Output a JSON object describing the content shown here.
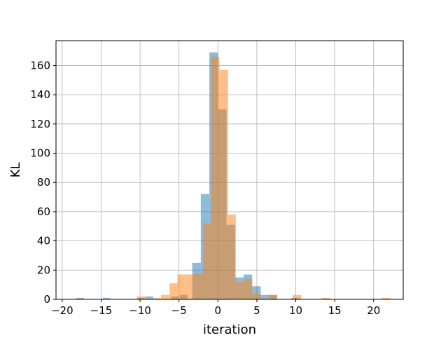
{
  "chart_data": {
    "type": "histogram",
    "title": "",
    "xlabel": "iteration",
    "ylabel": "KL",
    "xlim": [
      -20.8,
      23.8
    ],
    "ylim": [
      0,
      177
    ],
    "x_ticks": [
      -20,
      -15,
      -10,
      -5,
      0,
      5,
      10,
      15,
      20
    ],
    "y_ticks": [
      0,
      20,
      40,
      60,
      80,
      100,
      120,
      140,
      160
    ],
    "x_tick_labels": [
      "−20",
      "−15",
      "−10",
      "−5",
      "0",
      "5",
      "10",
      "15",
      "20"
    ],
    "y_tick_labels": [
      "0",
      "20",
      "40",
      "60",
      "80",
      "100",
      "120",
      "140",
      "160"
    ],
    "grid": true,
    "legend": "none",
    "bar_alpha": 0.5,
    "series": [
      {
        "color": "#1f77b4",
        "bins": [
          {
            "x0": -18.2,
            "x1": -17.2,
            "count": 1
          },
          {
            "x0": -14.8,
            "x1": -13.8,
            "count": 1
          },
          {
            "x0": -10.4,
            "x1": -9.4,
            "count": 1
          },
          {
            "x0": -9.3,
            "x1": -8.3,
            "count": 2
          },
          {
            "x0": -6.0,
            "x1": -5.0,
            "count": 2
          },
          {
            "x0": -4.9,
            "x1": -3.9,
            "count": 3
          },
          {
            "x0": -3.3,
            "x1": -2.2,
            "count": 25
          },
          {
            "x0": -2.2,
            "x1": -1.1,
            "count": 72
          },
          {
            "x0": -1.1,
            "x1": 0.0,
            "count": 169
          },
          {
            "x0": 0.0,
            "x1": 1.1,
            "count": 130
          },
          {
            "x0": 1.1,
            "x1": 2.2,
            "count": 51
          },
          {
            "x0": 2.2,
            "x1": 3.3,
            "count": 15
          },
          {
            "x0": 3.3,
            "x1": 4.4,
            "count": 17
          },
          {
            "x0": 4.4,
            "x1": 5.5,
            "count": 9
          },
          {
            "x0": 5.5,
            "x1": 6.6,
            "count": 3
          },
          {
            "x0": 6.6,
            "x1": 7.6,
            "count": 3
          },
          {
            "x0": 9.4,
            "x1": 10.5,
            "count": 1
          }
        ]
      },
      {
        "color": "#ff7f0e",
        "bins": [
          {
            "x0": -10.4,
            "x1": -9.3,
            "count": 2
          },
          {
            "x0": -8.3,
            "x1": -7.3,
            "count": 1
          },
          {
            "x0": -7.3,
            "x1": -6.2,
            "count": 3
          },
          {
            "x0": -6.2,
            "x1": -5.2,
            "count": 11
          },
          {
            "x0": -5.2,
            "x1": -4.1,
            "count": 17
          },
          {
            "x0": -4.1,
            "x1": -3.0,
            "count": 17
          },
          {
            "x0": -3.0,
            "x1": -1.9,
            "count": 18
          },
          {
            "x0": -1.9,
            "x1": -0.9,
            "count": 52
          },
          {
            "x0": -0.9,
            "x1": 0.2,
            "count": 166
          },
          {
            "x0": 0.2,
            "x1": 1.3,
            "count": 157
          },
          {
            "x0": 1.3,
            "x1": 2.3,
            "count": 58
          },
          {
            "x0": 2.3,
            "x1": 3.4,
            "count": 12
          },
          {
            "x0": 3.4,
            "x1": 4.4,
            "count": 14
          },
          {
            "x0": 4.4,
            "x1": 5.5,
            "count": 4
          },
          {
            "x0": 6.5,
            "x1": 7.6,
            "count": 3
          },
          {
            "x0": 9.6,
            "x1": 10.7,
            "count": 3
          },
          {
            "x0": 13.3,
            "x1": 14.4,
            "count": 1
          },
          {
            "x0": 21.1,
            "x1": 22.2,
            "count": 1
          }
        ]
      }
    ]
  }
}
